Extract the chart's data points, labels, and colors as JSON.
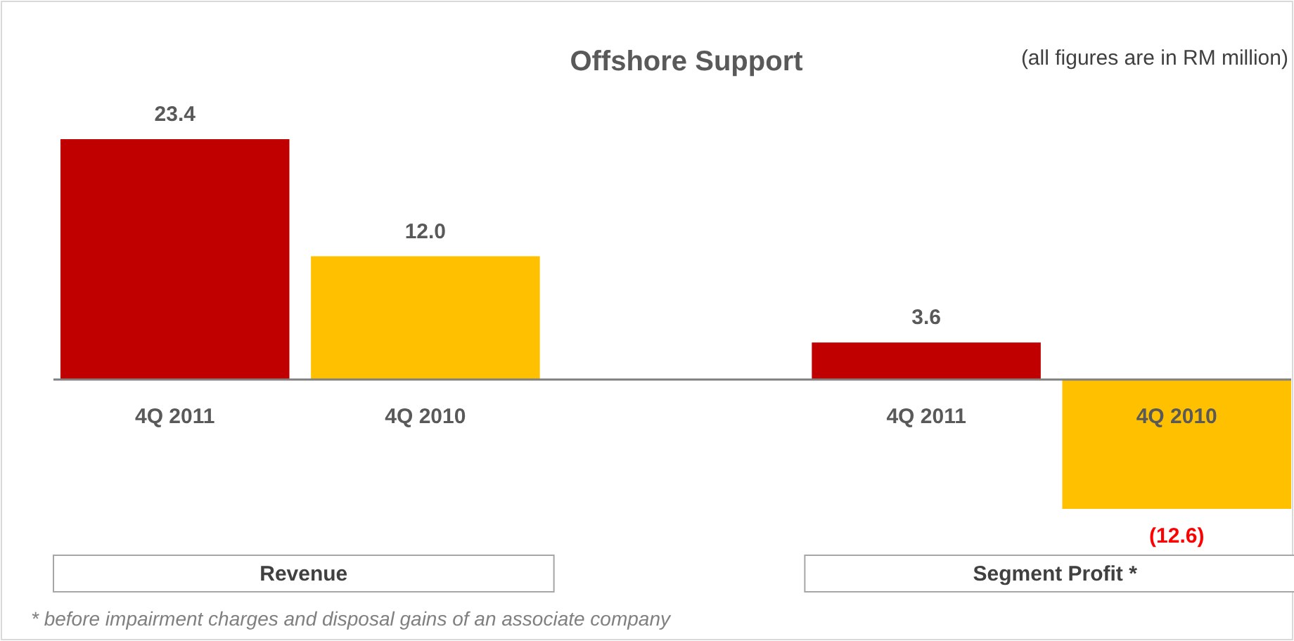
{
  "chart_data": {
    "type": "bar",
    "title": "Offshore Support",
    "categories": [
      "4Q 2011",
      "4Q 2010",
      null,
      "4Q 2011",
      "4Q 2010"
    ],
    "values": [
      23.4,
      12.0,
      null,
      3.6,
      -12.6
    ],
    "colors": [
      "#c00000",
      "#ffc000",
      null,
      "#c00000",
      "#ffc000"
    ],
    "value_labels": [
      "23.4",
      "12.0",
      null,
      "3.6",
      "(12.6)"
    ],
    "annotations": [
      "Revenue",
      "Segment Profit *",
      "(all figures are in RM million)",
      "* before impairment charges and disposal gains of an associate company"
    ]
  }
}
